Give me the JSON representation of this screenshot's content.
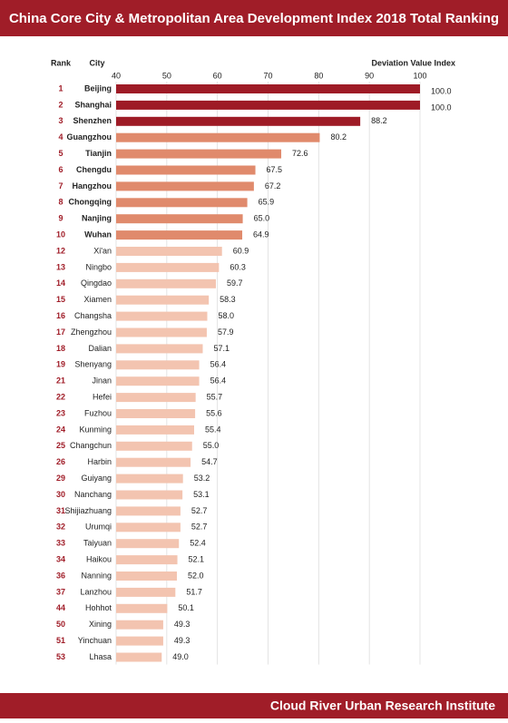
{
  "chart_data": {
    "type": "bar",
    "title": "China Core City & Metropolitan Area Development Index 2018 Total Ranking",
    "rank_header": "Rank",
    "city_header": "City",
    "value_header": "Deviation Value Index",
    "footer": "Cloud River Urban Research Institute",
    "ranks": [
      1,
      2,
      3,
      4,
      5,
      6,
      7,
      8,
      9,
      10,
      12,
      13,
      14,
      15,
      16,
      17,
      18,
      19,
      21,
      22,
      23,
      24,
      25,
      26,
      29,
      30,
      31,
      32,
      33,
      34,
      36,
      37,
      44,
      50,
      51,
      53
    ],
    "categories": [
      "Beijing",
      "Shanghai",
      "Shenzhen",
      "Guangzhou",
      "Tianjin",
      "Chengdu",
      "Hangzhou",
      "Chongqing",
      "Nanjing",
      "Wuhan",
      "Xi'an",
      "Ningbo",
      "Qingdao",
      "Xiamen",
      "Changsha",
      "Zhengzhou",
      "Dalian",
      "Shenyang",
      "Jinan",
      "Hefei",
      "Fuzhou",
      "Kunming",
      "Changchun",
      "Harbin",
      "Guiyang",
      "Nanchang",
      "Shijiazhuang",
      "Urumqi",
      "Taiyuan",
      "Haikou",
      "Nanning",
      "Lanzhou",
      "Hohhot",
      "Xining",
      "Yinchuan",
      "Lhasa"
    ],
    "values": [
      100,
      100,
      88.2,
      80.2,
      72.6,
      67.5,
      67.2,
      65.9,
      65.0,
      64.9,
      60.9,
      60.3,
      59.7,
      58.3,
      58.0,
      57.9,
      57.1,
      56.4,
      56.4,
      55.7,
      55.6,
      55.4,
      55.0,
      54.7,
      53.2,
      53.1,
      52.7,
      52.7,
      52.4,
      52.1,
      52.0,
      51.7,
      50.1,
      49.3,
      49.3,
      49.0
    ],
    "value_labels": [
      "100.0",
      "100.0",
      "88.2",
      "80.2",
      "72.6",
      "67.5",
      "67.2",
      "65.9",
      "65.0",
      "64.9",
      "60.9",
      "60.3",
      "59.7",
      "58.3",
      "58.0",
      "57.9",
      "57.1",
      "56.4",
      "56.4",
      "55.7",
      "55.6",
      "55.4",
      "55.0",
      "54.7",
      "53.2",
      "53.1",
      "52.7",
      "52.7",
      "52.4",
      "52.1",
      "52.0",
      "51.7",
      "50.1",
      "49.3",
      "49.3",
      "49.0"
    ],
    "colors": [
      "#9e1b26",
      "#9e1b26",
      "#9e1b26",
      "#e08a6c",
      "#e08a6c",
      "#e08a6c",
      "#e08a6c",
      "#e08a6c",
      "#e08a6c",
      "#e08a6c",
      "#f3c4b0",
      "#f3c4b0",
      "#f3c4b0",
      "#f3c4b0",
      "#f3c4b0",
      "#f3c4b0",
      "#f3c4b0",
      "#f3c4b0",
      "#f3c4b0",
      "#f3c4b0",
      "#f3c4b0",
      "#f3c4b0",
      "#f3c4b0",
      "#f3c4b0",
      "#f3c4b0",
      "#f3c4b0",
      "#f3c4b0",
      "#f3c4b0",
      "#f3c4b0",
      "#f3c4b0",
      "#f3c4b0",
      "#f3c4b0",
      "#f3c4b0",
      "#f3c4b0",
      "#f3c4b0",
      "#f3c4b0"
    ],
    "xlim": [
      40,
      100
    ],
    "xticks": [
      40,
      50,
      60,
      70,
      80,
      90,
      100
    ],
    "grid": true
  }
}
